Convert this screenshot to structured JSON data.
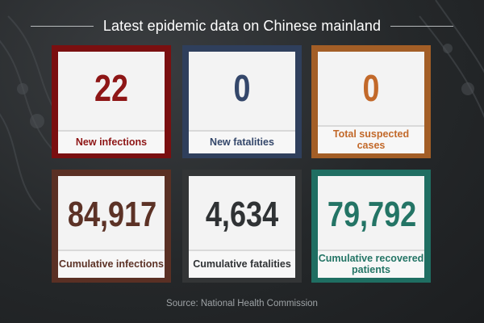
{
  "header": {
    "title": "Latest epidemic data on Chinese mainland"
  },
  "cards": [
    {
      "value": "22",
      "label": "New infections",
      "frame_color": "#7a0f10",
      "color": "#8e1616"
    },
    {
      "value": "0",
      "label": "New fatalities",
      "frame_color": "#2f3f5c",
      "color": "#34476a"
    },
    {
      "value": "0",
      "label": "Total suspected cases",
      "frame_color": "#a35e26",
      "color": "#c2692a"
    },
    {
      "value": "84,917",
      "label": "Cumulative infections",
      "frame_color": "#5a3024",
      "color": "#5c3226"
    },
    {
      "value": "4,634",
      "label": "Cumulative fatalities",
      "frame_color": "#333536",
      "color": "#2f3234"
    },
    {
      "value": "79,792",
      "label": "Cumulative recovered patients",
      "frame_color": "#1f6e62",
      "color": "#237465"
    }
  ],
  "footer": {
    "source": "Source: National Health Commission"
  }
}
